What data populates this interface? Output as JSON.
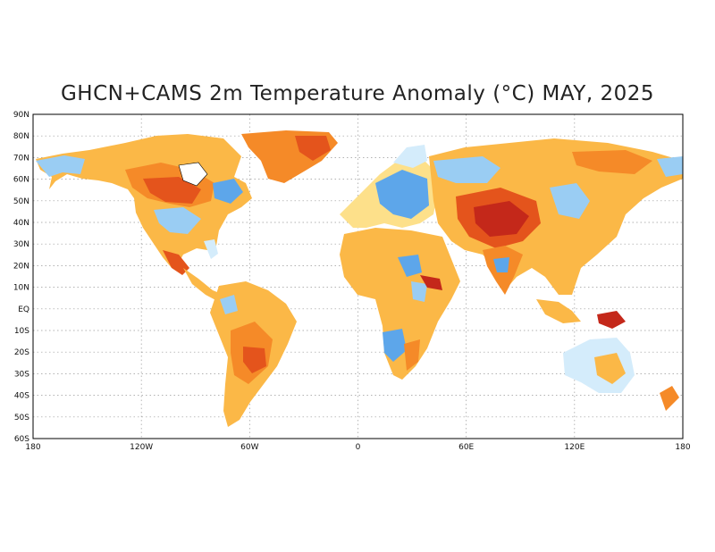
{
  "title": "GHCN+CAMS 2m Temperature Anomaly (°C) MAY, 2025",
  "lat_ticks": [
    "90N",
    "80N",
    "70N",
    "60N",
    "50N",
    "40N",
    "30N",
    "20N",
    "10N",
    "EQ",
    "10S",
    "20S",
    "30S",
    "40S",
    "50S",
    "60S"
  ],
  "lon_ticks": [
    "180",
    "120W",
    "60W",
    "0",
    "60E",
    "120E",
    "180"
  ],
  "palette": {
    "strong_warm": "#c4281a",
    "warm": "#e4541c",
    "mod_warm": "#f58a28",
    "light_warm": "#fbb847",
    "slight_warm": "#fde08a",
    "neutral": "#fff6c8",
    "slight_cool": "#d4ecfb",
    "cool": "#9acdf3",
    "mod_cool": "#5da6ea",
    "strong_cool": "#3a7ad6"
  }
}
